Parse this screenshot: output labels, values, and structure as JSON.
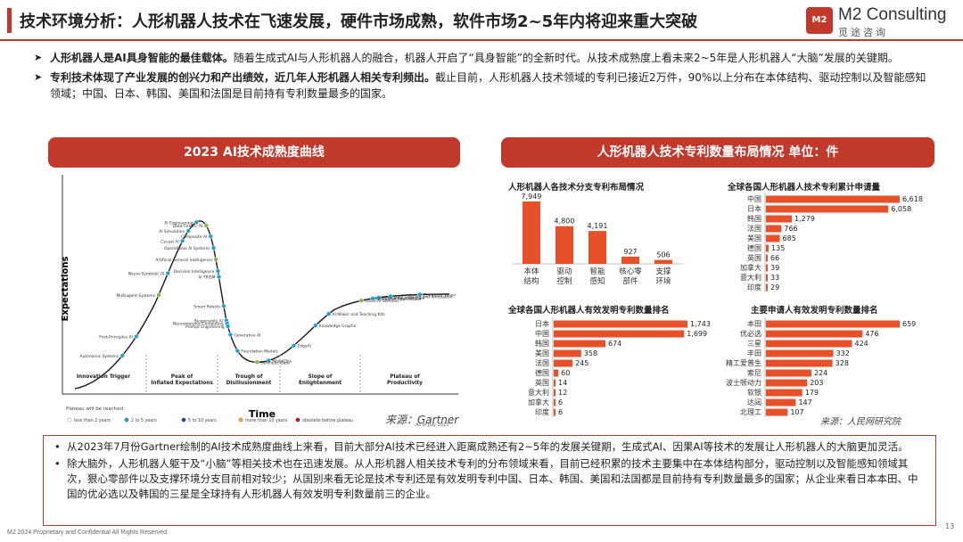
{
  "header": {
    "title": "技术环境分析：人形机器人技术在飞速发展，硬件市场成熟，软件市场2~5年内将迎来重大突破",
    "logo_mark": "M2",
    "logo_en": "M2 Consulting",
    "logo_cn": "觅途咨询"
  },
  "intro": {
    "b1_bold": "人形机器人是AI具身智能的最佳载体。",
    "b1_text": "随着生成式AI与人形机器人的融合，机器人开启了“具身智能”的全新时代。从技术成熟度上看未来2~5年是人形机器人“大脑”发展的关键期。",
    "b2_bold": "专利技术体现了产业发展的创兴力和产出绩效，近几年人形机器人相关专利频出。",
    "b2_text": "截止目前，人形机器人技术领域的专利已接近2万件，90%以上分布在本体结构、驱动控制以及智能感知领域；中国、日本、韩国、美国和法国是目前持有专利数量最多的国家。"
  },
  "left_panel": {
    "title": "2023 AI技术成熟度曲线",
    "source": "来源：Gartner"
  },
  "right_panel": {
    "title": "人形机器人技术专利数量布局情况  单位：件",
    "source": "来源：人民网研究院"
  },
  "colors": {
    "accent": "#c0392b",
    "bar": "#e8502a"
  },
  "chart_data": [
    {
      "type": "line",
      "title": "",
      "xlabel": "Time",
      "ylabel": "Expectations",
      "phases": [
        "Innovation Trigger",
        "Peak of Inflated Expectations",
        "Trough of Disillusionment",
        "Slope of Enlightenment",
        "Plateau of Productivity"
      ],
      "legend_title": "Plateau will be reached:",
      "legend": [
        "less than 2 years",
        "2 to 5 years",
        "5 to 10 years",
        "more than 10 years",
        "obsolete before plateau"
      ],
      "note": "As of July 2023",
      "technologies": [
        "Smart Robots",
        "Responsible AI",
        "Neuromorphic Computing",
        "Prompt Engineering",
        "Artificial General Intelligence",
        "Decision Intelligence",
        "AI TRiSM",
        "Operational AI Systems",
        "Composite AI",
        "Data-Centric AI",
        "AI Engineering",
        "AI Simulation",
        "Causal AI",
        "Neuro-Symbolic AI",
        "Multiagent Systems",
        "First-Principles AI",
        "Autonomic Systems",
        "Generative AI",
        "Foundation Models",
        "Synthetic Data",
        "ModelOps",
        "EdgeAI",
        "Knowledge Graphs",
        "AI Maker and Teaching Kits",
        "Cloud AI Services",
        "Autonomous Vehicles",
        "Intelligent Applications",
        "Data Labeling and Annotation",
        "Computer Vision"
      ]
    },
    {
      "type": "bar",
      "title": "人形机器人各技术分支专利布局情况",
      "categories": [
        "本体结构",
        "驱动控制",
        "智能感知",
        "核心零部件",
        "支撑环境"
      ],
      "values": [
        7949,
        4800,
        4191,
        927,
        506
      ]
    },
    {
      "type": "bar",
      "title": "全球各国人形机器人技术专利累计申请量",
      "categories": [
        "中国",
        "日本",
        "韩国",
        "法国",
        "美国",
        "德国",
        "英国",
        "加拿大",
        "意大利",
        "印度"
      ],
      "values": [
        6618,
        6058,
        1279,
        766,
        685,
        135,
        66,
        39,
        33,
        29
      ]
    },
    {
      "type": "bar",
      "title": "全球各国人形机器人有效发明专利数量排名",
      "categories": [
        "日本",
        "中国",
        "韩国",
        "美国",
        "法国",
        "德国",
        "英国",
        "意大利",
        "加拿大",
        "印度"
      ],
      "values": [
        1743,
        1699,
        674,
        358,
        245,
        60,
        14,
        12,
        6,
        6
      ]
    },
    {
      "type": "bar",
      "title": "主要申请人有效发明专利数量排名",
      "categories": [
        "本田",
        "优必选",
        "三星",
        "丰田",
        "精工爱普生",
        "索尼",
        "波士顿动力",
        "软银",
        "达闼",
        "北理工"
      ],
      "values": [
        659,
        476,
        424,
        332,
        328,
        224,
        203,
        179,
        147,
        107
      ]
    }
  ],
  "bottom": {
    "p1": "从2023年7月份Gartner绘制的AI技术成熟度曲线上来看，目前大部分AI技术已经进入距离成熟还有2~5年的发展关键期，生成式AI、因果AI等技术的发展让人形机器人的大脑更加灵活。",
    "p2": "除大脑外，人形机器人躯干及“小脑”等相关技术也在迅速发展。从人形机器人相关技术专利的分布领域来看，目前已经积累的技术主要集中在本体结构部分，驱动控制以及智能感知领域其次，狠心零部件以及支撑环境分支目前相对较少；从国别来看无论是技术专利还是有效发明专利中国、日本、韩国、美国和法国都是目前持有专利数量最多的国家；从企业来看日本本田、中国的优必选以及韩国的三星是全球持有人形机器人有效发明专利数量前三的企业。"
  },
  "footer": {
    "copyright": "M2 2024 Proprietary and Confidential All Rights Reserved.",
    "page": "13"
  }
}
